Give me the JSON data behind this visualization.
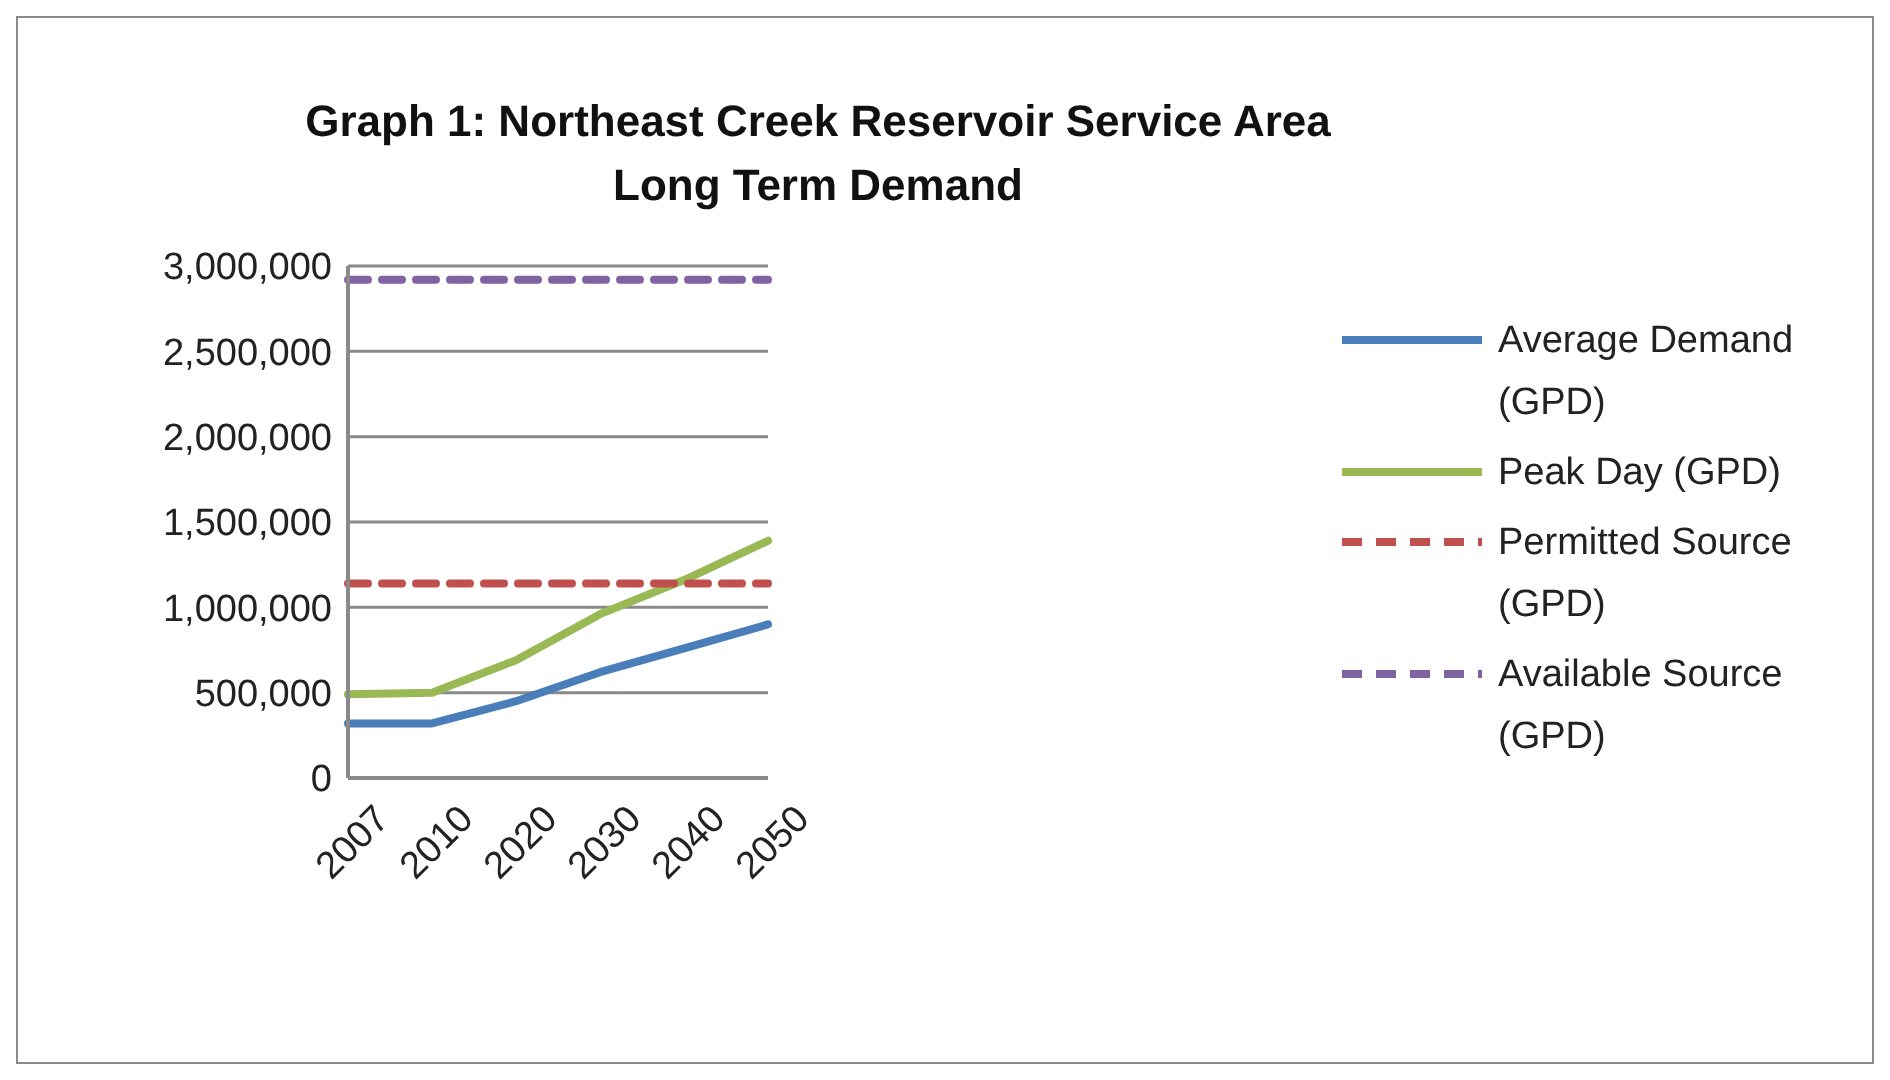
{
  "chart_data": {
    "type": "line",
    "title": "Graph 1: Northeast Creek Reservoir Service Area\nLong Term Demand",
    "categories": [
      "2007",
      "2010",
      "2020",
      "2030",
      "2040",
      "2050"
    ],
    "series": [
      {
        "name": "Average Demand (GPD)",
        "color": "#4a7ebb",
        "values": [
          320000,
          320000,
          450000,
          620000,
          760000,
          900000
        ]
      },
      {
        "name": "Peak Day (GPD)",
        "color": "#98b954",
        "values": [
          490000,
          500000,
          690000,
          960000,
          1160000,
          1390000
        ]
      },
      {
        "name": "Permitted Source (GPD)",
        "color": "#c0504d",
        "line_style": "dashed",
        "values": [
          1140000,
          1140000,
          1140000,
          1140000,
          1140000,
          1140000
        ]
      },
      {
        "name": "Available Source (GPD)",
        "color": "#8064a2",
        "line_style": "dashed",
        "values": [
          2920000,
          2920000,
          2920000,
          2920000,
          2920000,
          2920000
        ]
      }
    ],
    "ylim": [
      0,
      3000000
    ],
    "yticks": [
      0,
      {
        "value": 500000,
        "label": "500,000"
      },
      {
        "value": 1000000,
        "label": "1,000,000"
      },
      {
        "value": 1500000,
        "label": "1,500,000"
      },
      {
        "value": 2000000,
        "label": "2,000,000"
      },
      {
        "value": 2500000,
        "label": "2,500,000"
      },
      {
        "value": 3000000,
        "label": "3,000,000"
      }
    ],
    "grid": "y",
    "legend": "right",
    "marker": "none",
    "line_style": "solid"
  }
}
